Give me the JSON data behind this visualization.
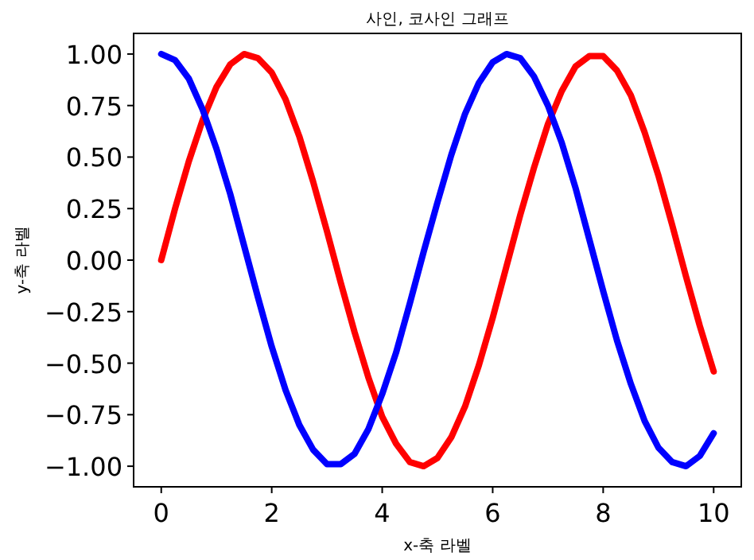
{
  "chart_data": {
    "type": "line",
    "title": "사인, 코사인 그래프",
    "xlabel": "x-축 라벨",
    "ylabel": "y-축 라벨",
    "x": [
      0,
      0.25,
      0.5,
      0.75,
      1,
      1.25,
      1.5,
      1.75,
      2,
      2.25,
      2.5,
      2.75,
      3,
      3.25,
      3.5,
      3.75,
      4,
      4.25,
      4.5,
      4.75,
      5,
      5.25,
      5.5,
      5.75,
      6,
      6.25,
      6.5,
      6.75,
      7,
      7.25,
      7.5,
      7.75,
      8,
      8.25,
      8.5,
      8.75,
      9,
      9.25,
      9.5,
      9.75,
      10
    ],
    "series": [
      {
        "color": "#ff0000",
        "values": [
          0,
          0.25,
          0.48,
          0.68,
          0.84,
          0.95,
          1.0,
          0.98,
          0.91,
          0.78,
          0.6,
          0.38,
          0.14,
          -0.11,
          -0.35,
          -0.57,
          -0.76,
          -0.89,
          -0.98,
          -1.0,
          -0.96,
          -0.86,
          -0.71,
          -0.51,
          -0.28,
          -0.03,
          0.22,
          0.45,
          0.66,
          0.82,
          0.94,
          0.99,
          0.99,
          0.92,
          0.8,
          0.62,
          0.41,
          0.17,
          -0.08,
          -0.32,
          -0.54
        ]
      },
      {
        "color": "#0000ff",
        "values": [
          1.0,
          0.97,
          0.88,
          0.73,
          0.54,
          0.32,
          0.07,
          -0.18,
          -0.42,
          -0.63,
          -0.8,
          -0.92,
          -0.99,
          -0.99,
          -0.94,
          -0.82,
          -0.65,
          -0.45,
          -0.21,
          0.04,
          0.28,
          0.51,
          0.71,
          0.86,
          0.96,
          1.0,
          0.98,
          0.89,
          0.75,
          0.57,
          0.35,
          0.1,
          -0.15,
          -0.39,
          -0.6,
          -0.78,
          -0.91,
          -0.98,
          -1.0,
          -0.95,
          -0.84
        ]
      }
    ],
    "xlim": [
      -0.5,
      10.5
    ],
    "ylim": [
      -1.1,
      1.1
    ],
    "xticks": [
      0,
      2,
      4,
      6,
      8,
      10
    ],
    "yticks": [
      {
        "value": -1,
        "label": "−1.00"
      },
      {
        "value": -0.75,
        "label": "−0.75"
      },
      {
        "value": -0.5,
        "label": "−0.50"
      },
      {
        "value": -0.25,
        "label": "−0.25"
      },
      {
        "value": 0,
        "label": "0.00"
      },
      {
        "value": 0.25,
        "label": "0.25"
      },
      {
        "value": 0.5,
        "label": "0.50"
      },
      {
        "value": 0.75,
        "label": "0.75"
      },
      {
        "value": 1,
        "label": "1.00"
      }
    ]
  }
}
